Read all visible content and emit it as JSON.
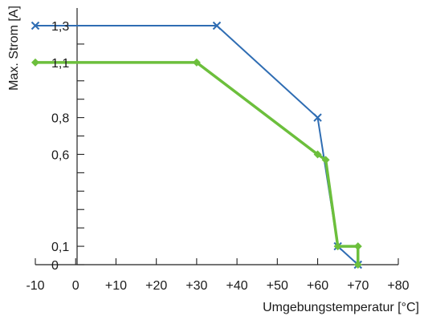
{
  "chart_data": {
    "type": "line",
    "xlabel": "Umgebungstemperatur [°C]",
    "ylabel": "Max. Strom [A]",
    "xlim": [
      -10,
      80
    ],
    "ylim": [
      0,
      1.3
    ],
    "x_ticks": [
      -10,
      0,
      10,
      20,
      30,
      40,
      50,
      60,
      70,
      80
    ],
    "x_tick_labels": [
      "-10",
      "0",
      "+10",
      "+20",
      "+30",
      "+40",
      "+50",
      "+60",
      "+70",
      "+80"
    ],
    "y_tick_labels": [
      {
        "value": 1.3,
        "label": "1,3"
      },
      {
        "value": 1.1,
        "label": "1,1"
      },
      {
        "value": 0.8,
        "label": "0,8"
      },
      {
        "value": 0.6,
        "label": "0,6"
      },
      {
        "value": 0.1,
        "label": "0,1"
      },
      {
        "value": 0,
        "label": "0"
      }
    ],
    "series": [
      {
        "color": "#2f6db3",
        "marker": "x",
        "points": [
          [
            -10,
            1.3
          ],
          [
            35,
            1.3
          ],
          [
            60,
            0.8
          ],
          [
            65,
            0.1
          ],
          [
            70,
            0
          ]
        ]
      },
      {
        "color": "#6cbf3c",
        "marker": "diamond",
        "points": [
          [
            -10,
            1.1
          ],
          [
            30,
            1.1
          ],
          [
            60,
            0.6
          ],
          [
            62,
            0.57
          ],
          [
            65,
            0.1
          ],
          [
            70,
            0.1
          ],
          [
            70,
            0
          ]
        ]
      }
    ]
  }
}
